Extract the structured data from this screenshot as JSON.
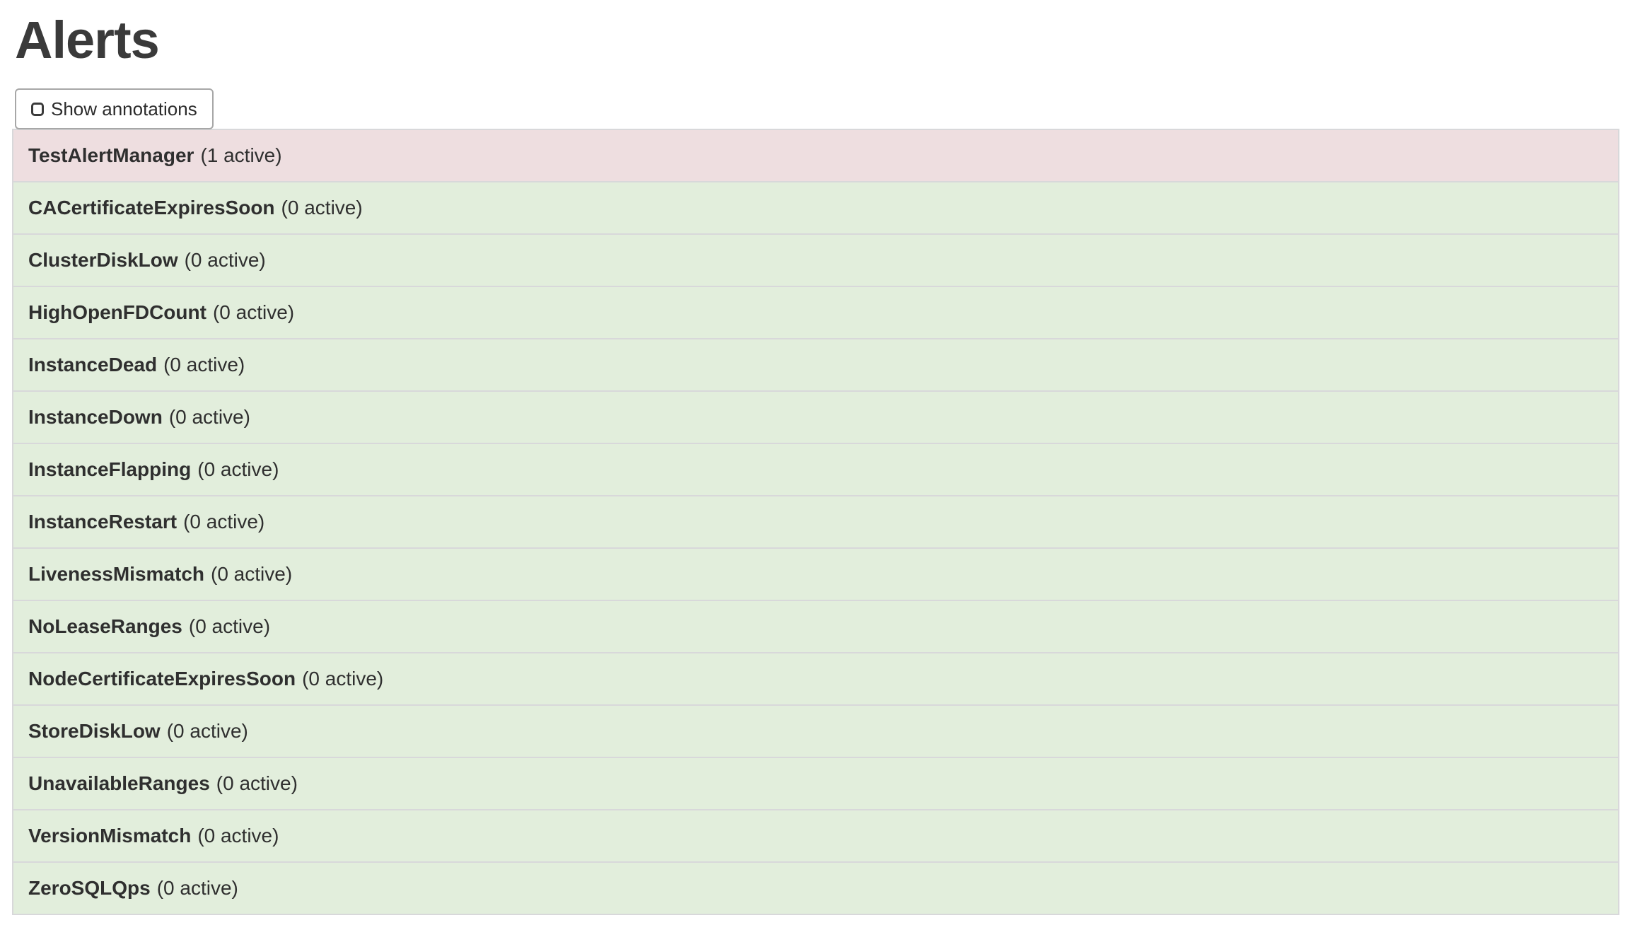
{
  "page": {
    "title": "Alerts"
  },
  "toolbar": {
    "show_annotations": {
      "label": "Show annotations",
      "checked": false
    }
  },
  "alert_list": {
    "items": [
      {
        "name": "TestAlertManager",
        "count_label": "(1 active)",
        "status": "danger"
      },
      {
        "name": "CACertificateExpiresSoon",
        "count_label": "(0 active)",
        "status": "success"
      },
      {
        "name": "ClusterDiskLow",
        "count_label": "(0 active)",
        "status": "success"
      },
      {
        "name": "HighOpenFDCount",
        "count_label": "(0 active)",
        "status": "success"
      },
      {
        "name": "InstanceDead",
        "count_label": "(0 active)",
        "status": "success"
      },
      {
        "name": "InstanceDown",
        "count_label": "(0 active)",
        "status": "success"
      },
      {
        "name": "InstanceFlapping",
        "count_label": "(0 active)",
        "status": "success"
      },
      {
        "name": "InstanceRestart",
        "count_label": "(0 active)",
        "status": "success"
      },
      {
        "name": "LivenessMismatch",
        "count_label": "(0 active)",
        "status": "success"
      },
      {
        "name": "NoLeaseRanges",
        "count_label": "(0 active)",
        "status": "success"
      },
      {
        "name": "NodeCertificateExpiresSoon",
        "count_label": "(0 active)",
        "status": "success"
      },
      {
        "name": "StoreDiskLow",
        "count_label": "(0 active)",
        "status": "success"
      },
      {
        "name": "UnavailableRanges",
        "count_label": "(0 active)",
        "status": "success"
      },
      {
        "name": "VersionMismatch",
        "count_label": "(0 active)",
        "status": "success"
      },
      {
        "name": "ZeroSQLQps",
        "count_label": "(0 active)",
        "status": "success"
      }
    ]
  },
  "colors": {
    "danger_bg": "#eedee0",
    "success_bg": "#e2eedc",
    "row_border": "#d8d8da",
    "button_border": "#a7a7a7",
    "text": "#2f2f2f"
  }
}
